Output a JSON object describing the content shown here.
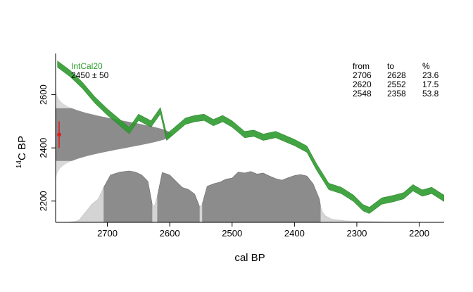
{
  "chart_data": {
    "type": "area",
    "xlabel": "cal BP",
    "ylabel_base": "C BP",
    "ylabel_superscript": "14",
    "x_reversed": true,
    "xlim": [
      2783,
      2160
    ],
    "ylim": [
      2120,
      2755
    ],
    "x_ticks": [
      2700,
      2600,
      2500,
      2400,
      2300,
      2200
    ],
    "y_ticks": [
      2200,
      2400,
      2600
    ],
    "calibration_curve": {
      "name": "IntCal20",
      "color": "#2e9a2e",
      "x": [
        2780,
        2760,
        2740,
        2720,
        2700,
        2680,
        2665,
        2650,
        2630,
        2615,
        2605,
        2590,
        2575,
        2560,
        2545,
        2530,
        2515,
        2500,
        2480,
        2465,
        2450,
        2430,
        2415,
        2400,
        2380,
        2365,
        2345,
        2325,
        2305,
        2290,
        2280,
        2260,
        2240,
        2225,
        2210,
        2195,
        2180,
        2160
      ],
      "y": [
        2715,
        2680,
        2635,
        2580,
        2535,
        2495,
        2465,
        2515,
        2490,
        2540,
        2440,
        2470,
        2500,
        2510,
        2515,
        2495,
        2510,
        2490,
        2450,
        2455,
        2440,
        2450,
        2435,
        2420,
        2395,
        2330,
        2255,
        2240,
        2210,
        2175,
        2165,
        2200,
        2210,
        2220,
        2250,
        2230,
        2240,
        2210
      ],
      "halfwidth": 12
    },
    "radiocarbon_date": {
      "label": "2450 ± 50",
      "mean": 2450,
      "sd": 50,
      "color": "#e41a1c"
    },
    "calibrated_distribution": {
      "x": [
        2765,
        2750,
        2745,
        2735,
        2725,
        2715,
        2705,
        2695,
        2680,
        2665,
        2655,
        2645,
        2635,
        2628,
        2625,
        2620,
        2612,
        2600,
        2590,
        2580,
        2570,
        2560,
        2552,
        2548,
        2540,
        2530,
        2520,
        2510,
        2500,
        2490,
        2480,
        2470,
        2460,
        2450,
        2440,
        2430,
        2420,
        2410,
        2400,
        2390,
        2380,
        2370,
        2360,
        2358,
        2355,
        2350,
        2340,
        2320,
        2300,
        2280,
        2250,
        2220,
        2190
      ],
      "density": [
        0.0,
        0.02,
        0.05,
        0.2,
        0.35,
        0.45,
        0.7,
        0.92,
        0.98,
        1.0,
        0.98,
        0.92,
        0.8,
        0.35,
        0.3,
        0.5,
        0.97,
        0.92,
        0.8,
        0.68,
        0.64,
        0.55,
        0.3,
        0.35,
        0.7,
        0.75,
        0.78,
        0.84,
        0.86,
        0.98,
        0.96,
        0.99,
        0.94,
        0.96,
        0.9,
        0.85,
        0.82,
        0.87,
        0.91,
        0.93,
        0.9,
        0.75,
        0.45,
        0.3,
        0.2,
        0.12,
        0.06,
        0.03,
        0.02,
        0.015,
        0.01,
        0.005,
        0.0
      ],
      "hpd_ranges": [
        {
          "from": "2706",
          "to": "2628",
          "percent": "23.6"
        },
        {
          "from": "2620",
          "to": "2552",
          "percent": "17.5"
        },
        {
          "from": "2548",
          "to": "2358",
          "percent": "53.8"
        }
      ]
    },
    "hpd_table_headers": {
      "from": "from",
      "to": "to",
      "percent": "%"
    }
  }
}
